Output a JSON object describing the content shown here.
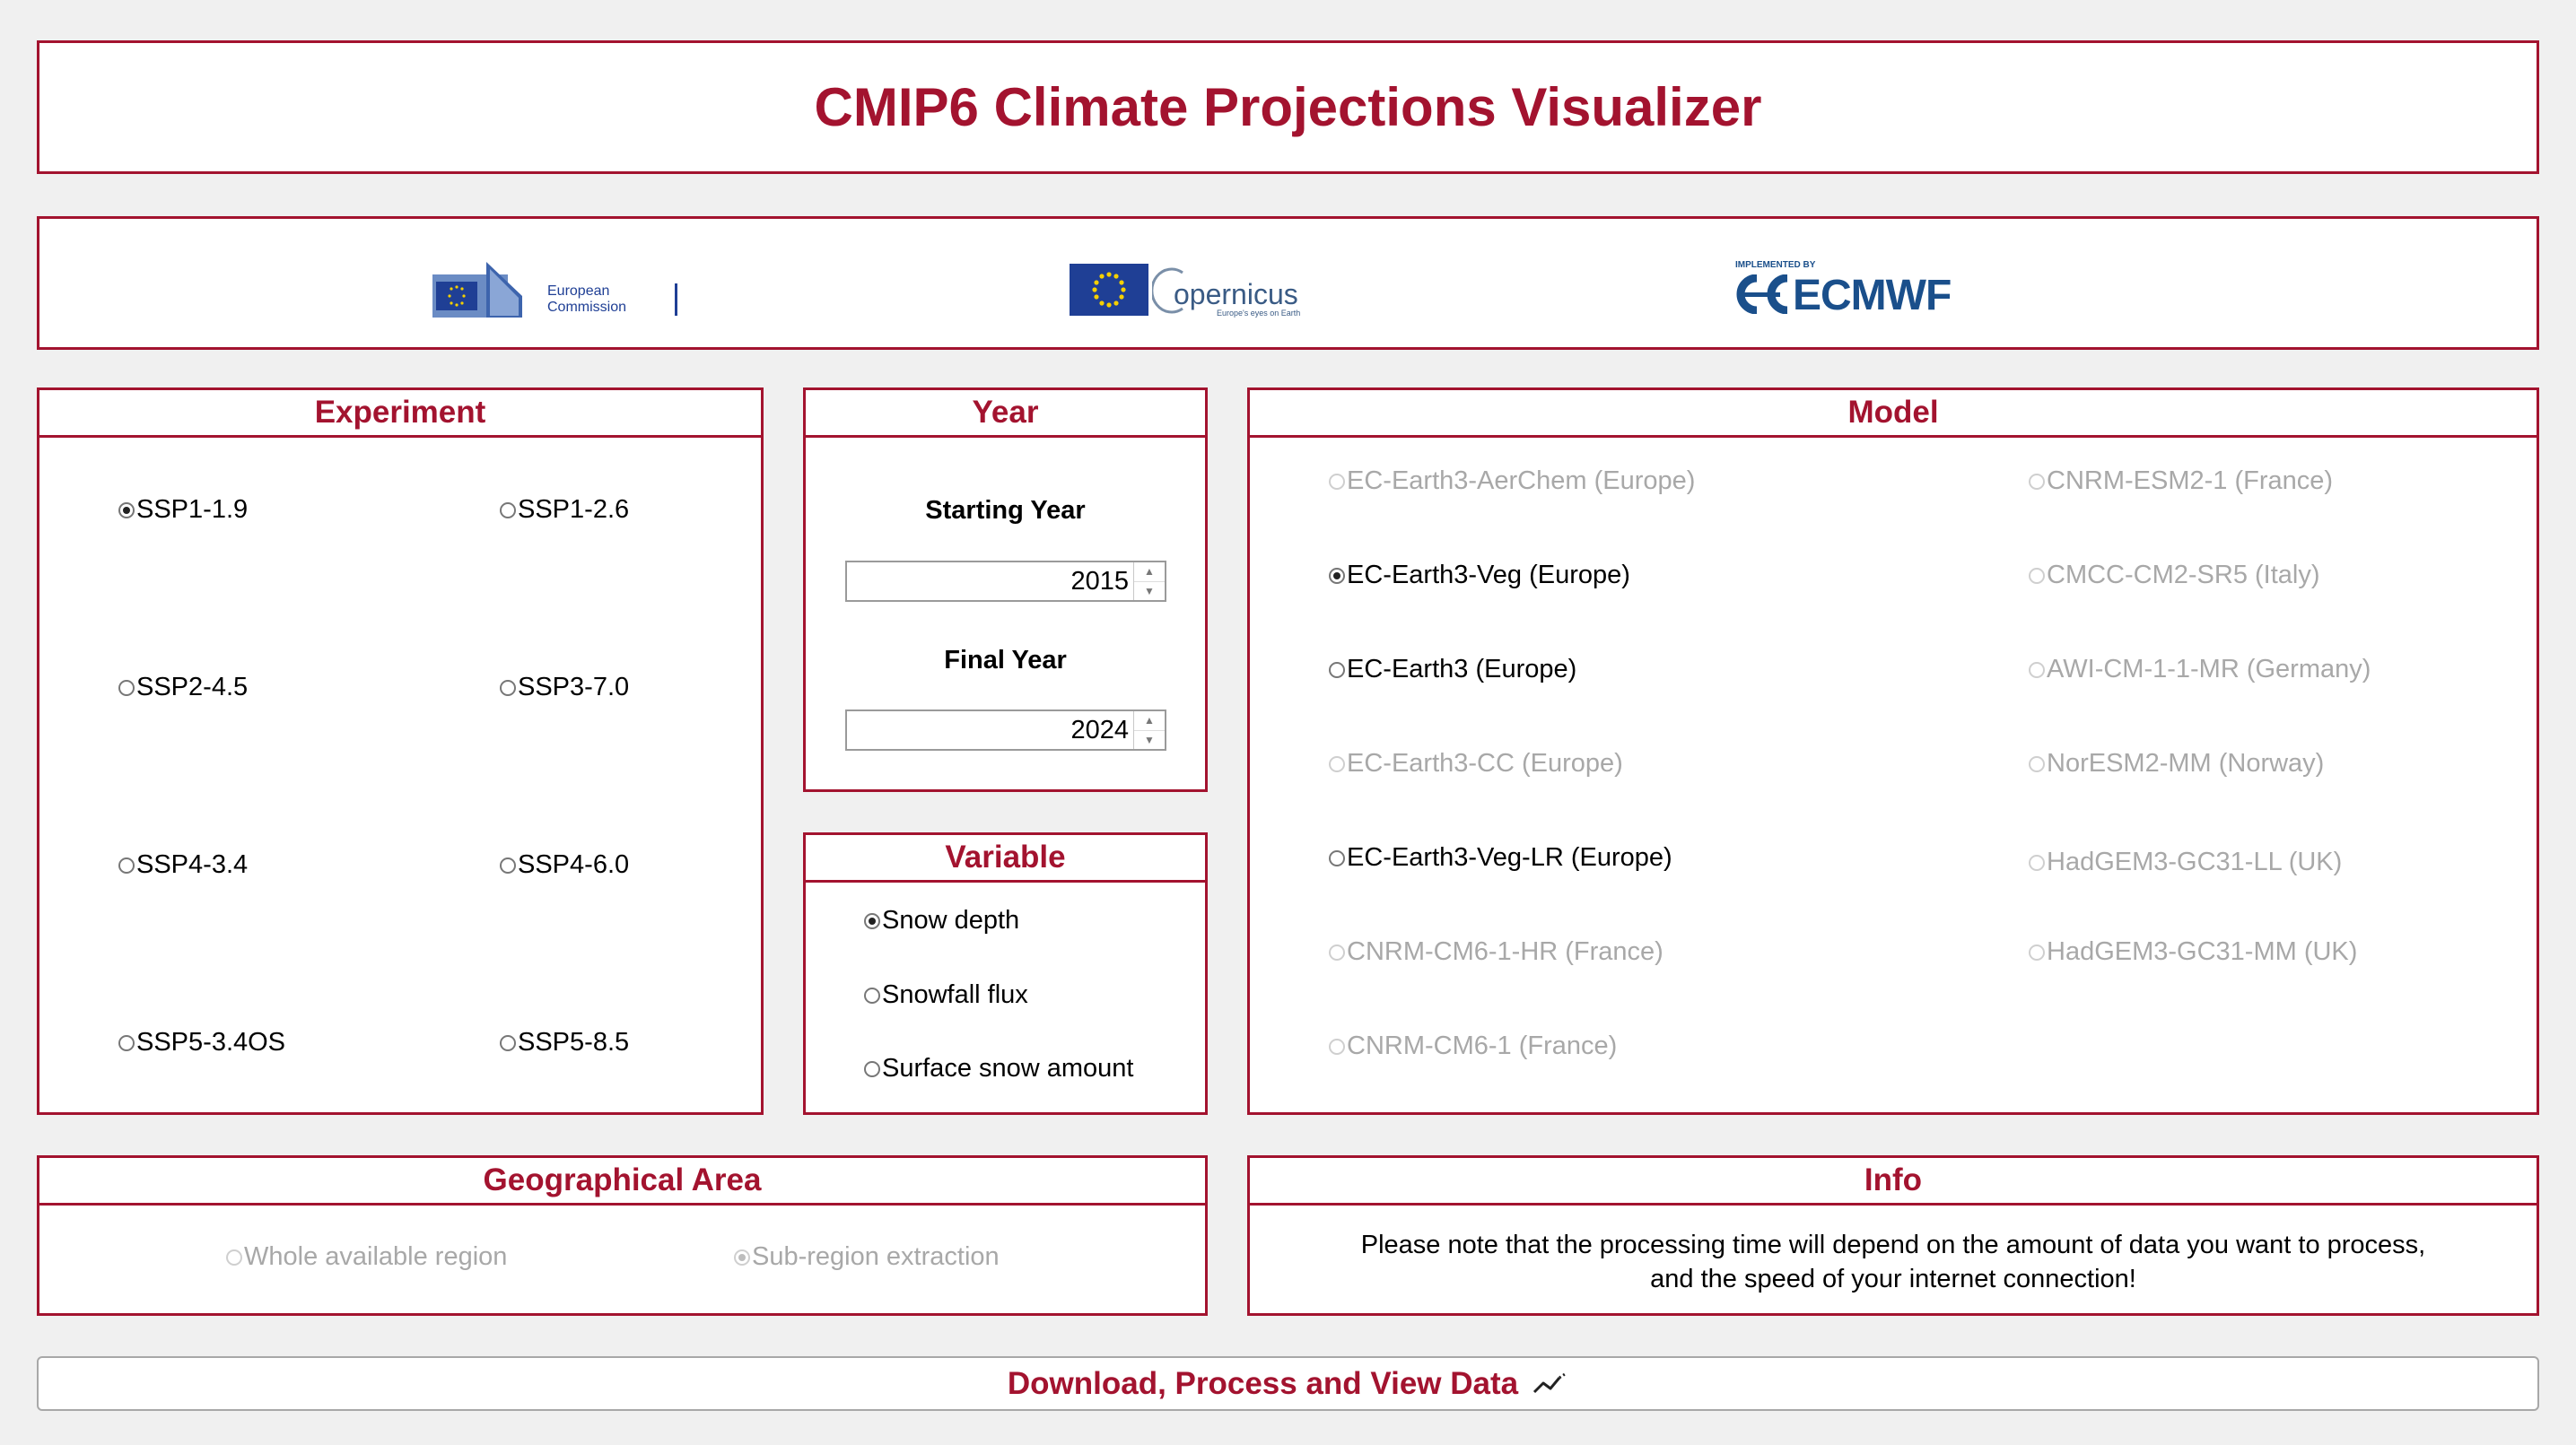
{
  "app": {
    "title": "CMIP6 Climate Projections Visualizer"
  },
  "logos": {
    "european_commission": {
      "line1": "European",
      "line2": "Commission"
    },
    "copernicus": {
      "name": "opernicus",
      "tagline": "Europe's eyes on Earth"
    },
    "ecmwf": {
      "implemented_by": "IMPLEMENTED BY",
      "name": "ECMWF",
      "brand_color": "#1a4f8b"
    }
  },
  "experiment": {
    "title": "Experiment",
    "options": [
      {
        "label": "SSP1-1.9",
        "selected": true
      },
      {
        "label": "SSP1-2.6",
        "selected": false
      },
      {
        "label": "SSP2-4.5",
        "selected": false
      },
      {
        "label": "SSP3-7.0",
        "selected": false
      },
      {
        "label": "SSP4-3.4",
        "selected": false
      },
      {
        "label": "SSP4-6.0",
        "selected": false
      },
      {
        "label": "SSP5-3.4OS",
        "selected": false
      },
      {
        "label": "SSP5-8.5",
        "selected": false
      }
    ]
  },
  "year": {
    "title": "Year",
    "start_label": "Starting Year",
    "start_value": "2015",
    "end_label": "Final Year",
    "end_value": "2024"
  },
  "variable": {
    "title": "Variable",
    "options": [
      {
        "label": "Snow depth",
        "selected": true
      },
      {
        "label": "Snowfall flux",
        "selected": false
      },
      {
        "label": "Surface snow amount",
        "selected": false
      }
    ]
  },
  "model": {
    "title": "Model",
    "options": [
      {
        "label": "EC-Earth3-AerChem (Europe)",
        "selected": false,
        "enabled": false
      },
      {
        "label": "CNRM-ESM2-1 (France)",
        "selected": false,
        "enabled": false
      },
      {
        "label": "EC-Earth3-Veg (Europe)",
        "selected": true,
        "enabled": true
      },
      {
        "label": "CMCC-CM2-SR5 (Italy)",
        "selected": false,
        "enabled": false
      },
      {
        "label": "EC-Earth3 (Europe)",
        "selected": false,
        "enabled": true
      },
      {
        "label": "AWI-CM-1-1-MR (Germany)",
        "selected": false,
        "enabled": false
      },
      {
        "label": "EC-Earth3-CC (Europe)",
        "selected": false,
        "enabled": false
      },
      {
        "label": "NorESM2-MM (Norway)",
        "selected": false,
        "enabled": false
      },
      {
        "label": "EC-Earth3-Veg-LR (Europe)",
        "selected": false,
        "enabled": true
      },
      {
        "label": "HadGEM3-GC31-LL (UK)",
        "selected": false,
        "enabled": false
      },
      {
        "label": "CNRM-CM6-1-HR (France)",
        "selected": false,
        "enabled": false
      },
      {
        "label": "HadGEM3-GC31-MM (UK)",
        "selected": false,
        "enabled": false
      },
      {
        "label": "CNRM-CM6-1 (France)",
        "selected": false,
        "enabled": false
      }
    ]
  },
  "geo": {
    "title": "Geographical Area",
    "options": [
      {
        "label": "Whole available region",
        "selected": false,
        "enabled": false
      },
      {
        "label": "Sub-region extraction",
        "selected": true,
        "enabled": false
      }
    ]
  },
  "info": {
    "title": "Info",
    "line1": "Please note that the processing time will depend on the amount of data you want to process,",
    "line2": "and the speed of your internet connection!"
  },
  "action": {
    "label": "Download, Process and View Data",
    "icon": "line-chart-icon"
  },
  "colors": {
    "accent": "#a3132f",
    "background": "#f0f0f0"
  }
}
